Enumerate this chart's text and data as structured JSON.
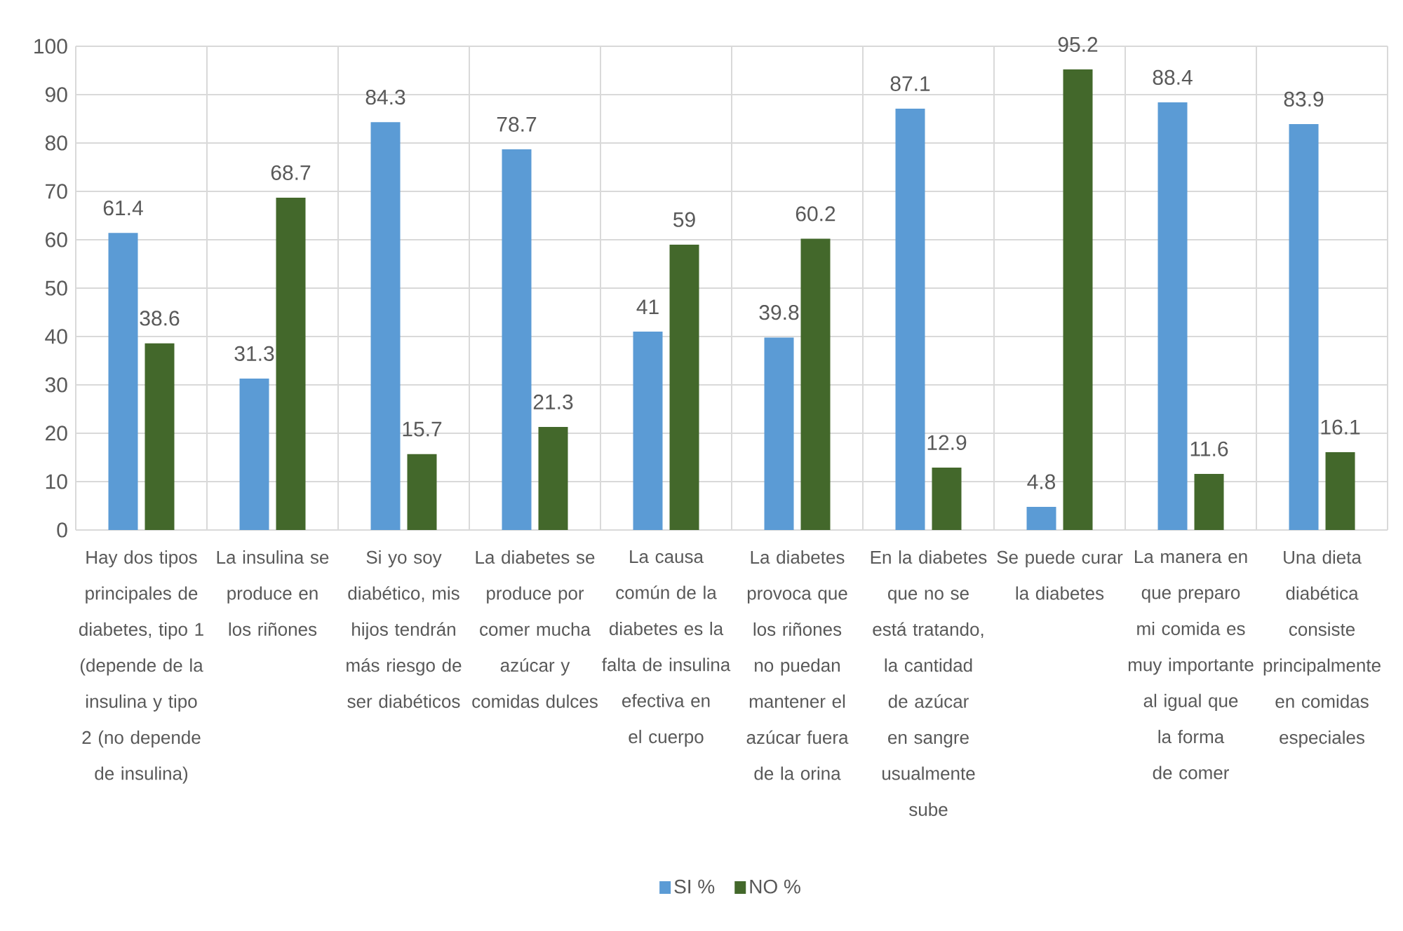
{
  "chart_data": {
    "type": "bar",
    "categories": [
      "Hay dos tipos principales de diabetes, tipo 1 (depende de la insulina y tipo 2 (no depende de insulina)",
      "La insulina se produce en los riñones",
      "Si yo soy diabético, mis hijos tendrán más riesgo de ser diabéticos",
      "La diabetes se produce por comer mucha azúcar y comidas dulces",
      "La causa común de la diabetes es la falta de insulina efectiva en el cuerpo",
      "La diabetes provoca que los riñones no puedan mantener el azúcar fuera de la orina",
      "En la diabetes que no se está tratando, la cantidad de azúcar en sangre usualmente sube",
      "Se puede curar la diabetes",
      "La manera en que preparo mi comida es muy importante al igual que la forma de comer",
      "Una dieta diabética consiste principalmente en comidas especiales"
    ],
    "series": [
      {
        "name": "SI %",
        "color": "#5b9bd5",
        "values": [
          61.4,
          31.3,
          84.3,
          78.7,
          41,
          39.8,
          87.1,
          4.8,
          88.4,
          83.9
        ]
      },
      {
        "name": "NO %",
        "color": "#43682b",
        "values": [
          38.6,
          68.7,
          15.7,
          21.3,
          59,
          60.2,
          12.9,
          95.2,
          11.6,
          16.1
        ]
      }
    ],
    "ylim": [
      0,
      100
    ],
    "yticks": [
      0,
      10,
      20,
      30,
      40,
      50,
      60,
      70,
      80,
      90,
      100
    ],
    "grid": true,
    "legend": "bottom",
    "data_labels": true
  }
}
